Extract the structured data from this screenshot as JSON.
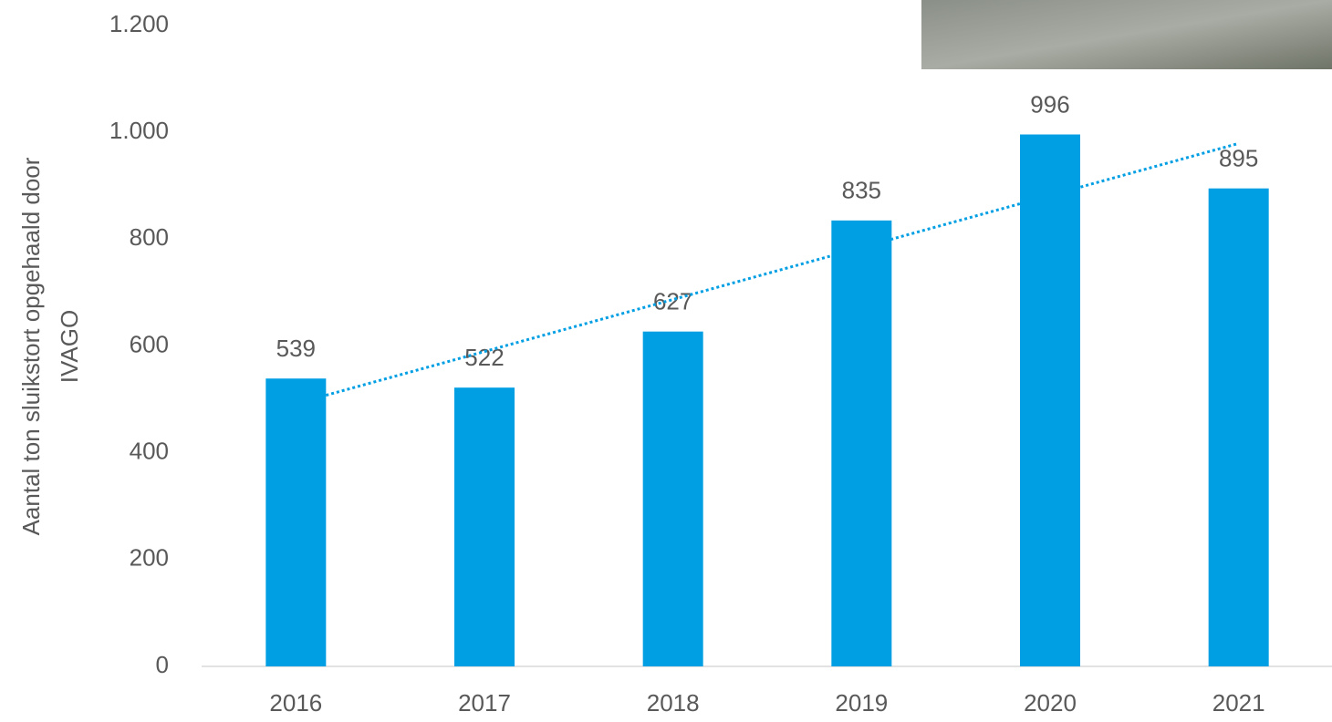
{
  "chart_data": {
    "type": "bar",
    "y_label": [
      "Aantal ton sluikstort opgehaald door",
      "IVAGO"
    ],
    "categories": [
      "2016",
      "2017",
      "2018",
      "2019",
      "2020",
      "2021"
    ],
    "values": [
      539,
      522,
      627,
      835,
      996,
      895
    ],
    "color": "#009fe3",
    "trendline": "linear",
    "trendline_color": "#009fe3",
    "ylim": [
      0,
      1200
    ],
    "yticks": [
      0,
      200,
      400,
      600,
      800,
      {
        "value": 1000,
        "label": "1.000"
      },
      {
        "value": 1200,
        "label": "1.200"
      }
    ],
    "grid": false
  }
}
